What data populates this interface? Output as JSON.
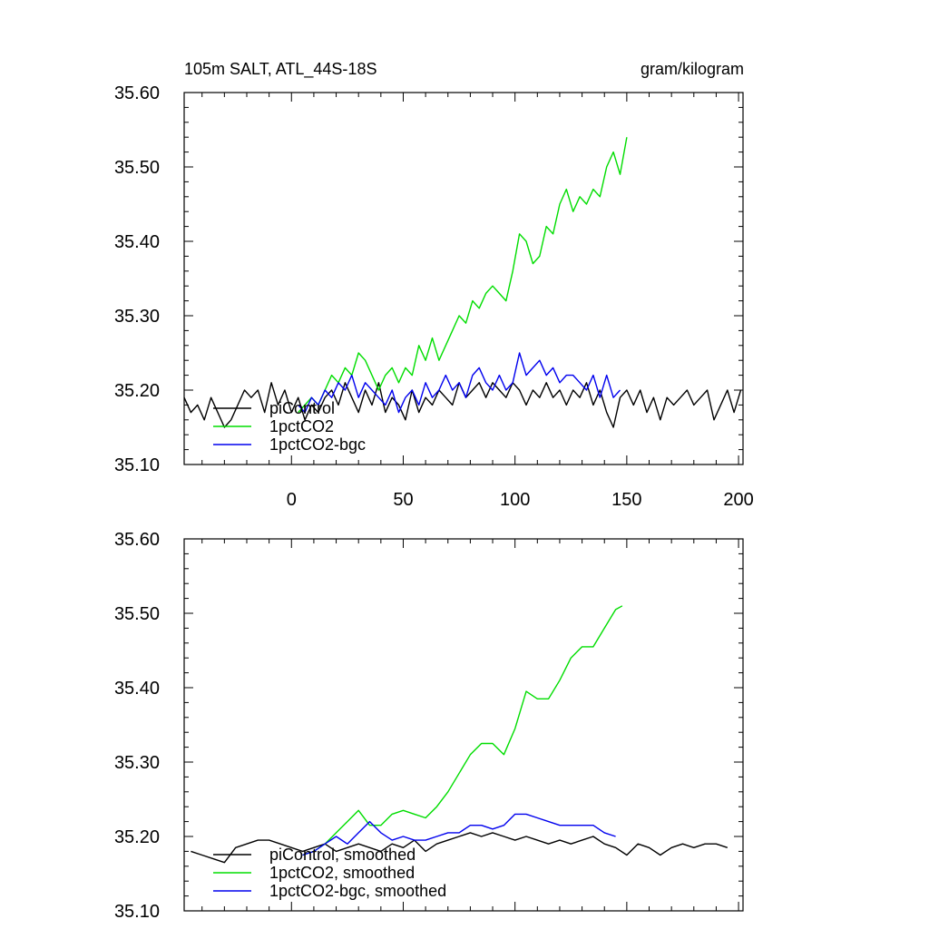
{
  "chart_data": [
    {
      "type": "line",
      "title_left": "105m SALT, ATL_44S-18S",
      "title_right": "gram/kilogram",
      "xlim": [
        -48,
        202
      ],
      "ylim": [
        35.1,
        35.6
      ],
      "x_ticks": [
        "0",
        "50",
        "100",
        "150",
        "200"
      ],
      "y_ticks": [
        "35.10",
        "35.20",
        "35.30",
        "35.40",
        "35.50",
        "35.60"
      ],
      "grid": false,
      "legend_position": "bottom-left",
      "series": [
        {
          "name": "piControl",
          "color": "#000000",
          "x": [
            -48,
            -45,
            -42,
            -39,
            -36,
            -33,
            -30,
            -27,
            -24,
            -21,
            -18,
            -15,
            -12,
            -9,
            -6,
            -3,
            0,
            3,
            6,
            9,
            12,
            15,
            18,
            21,
            24,
            27,
            30,
            33,
            36,
            39,
            42,
            45,
            48,
            51,
            54,
            57,
            60,
            63,
            66,
            69,
            72,
            75,
            78,
            81,
            84,
            87,
            90,
            93,
            96,
            99,
            102,
            105,
            108,
            111,
            114,
            117,
            120,
            123,
            126,
            129,
            132,
            135,
            138,
            141,
            144,
            147,
            150,
            153,
            156,
            159,
            162,
            165,
            168,
            171,
            174,
            177,
            180,
            183,
            186,
            189,
            192,
            195,
            198,
            201
          ],
          "y": [
            35.19,
            35.17,
            35.18,
            35.16,
            35.19,
            35.17,
            35.15,
            35.16,
            35.18,
            35.2,
            35.19,
            35.2,
            35.17,
            35.21,
            35.18,
            35.2,
            35.17,
            35.19,
            35.16,
            35.18,
            35.17,
            35.19,
            35.2,
            35.18,
            35.21,
            35.19,
            35.17,
            35.2,
            35.18,
            35.21,
            35.17,
            35.19,
            35.18,
            35.16,
            35.2,
            35.17,
            35.19,
            35.18,
            35.2,
            35.19,
            35.18,
            35.21,
            35.19,
            35.2,
            35.21,
            35.19,
            35.21,
            35.2,
            35.19,
            35.21,
            35.2,
            35.18,
            35.2,
            35.19,
            35.21,
            35.19,
            35.2,
            35.18,
            35.2,
            35.19,
            35.21,
            35.18,
            35.2,
            35.17,
            35.15,
            35.19,
            35.2,
            35.18,
            35.2,
            35.17,
            35.19,
            35.16,
            35.19,
            35.18,
            35.19,
            35.2,
            35.18,
            35.19,
            35.2,
            35.16,
            35.18,
            35.2,
            35.17,
            35.2
          ]
        },
        {
          "name": "1pctCO2",
          "color": "#00dd00",
          "x": [
            3,
            6,
            9,
            12,
            15,
            18,
            21,
            24,
            27,
            30,
            33,
            36,
            39,
            42,
            45,
            48,
            51,
            54,
            57,
            60,
            63,
            66,
            69,
            72,
            75,
            78,
            81,
            84,
            87,
            90,
            93,
            96,
            99,
            102,
            105,
            108,
            111,
            114,
            117,
            120,
            123,
            126,
            129,
            132,
            135,
            138,
            141,
            144,
            147,
            150
          ],
          "y": [
            35.17,
            35.18,
            35.19,
            35.18,
            35.2,
            35.22,
            35.21,
            35.23,
            35.22,
            35.25,
            35.24,
            35.22,
            35.2,
            35.22,
            35.23,
            35.21,
            35.23,
            35.22,
            35.26,
            35.24,
            35.27,
            35.24,
            35.26,
            35.28,
            35.3,
            35.29,
            35.32,
            35.31,
            35.33,
            35.34,
            35.33,
            35.32,
            35.36,
            35.41,
            35.4,
            35.37,
            35.38,
            35.42,
            35.41,
            35.45,
            35.47,
            35.44,
            35.46,
            35.45,
            35.47,
            35.46,
            35.5,
            35.52,
            35.49,
            35.54
          ]
        },
        {
          "name": "1pctCO2-bgc",
          "color": "#0000ee",
          "x": [
            3,
            6,
            9,
            12,
            15,
            18,
            21,
            24,
            27,
            30,
            33,
            36,
            39,
            42,
            45,
            48,
            51,
            54,
            57,
            60,
            63,
            66,
            69,
            72,
            75,
            78,
            81,
            84,
            87,
            90,
            93,
            96,
            99,
            102,
            105,
            108,
            111,
            114,
            117,
            120,
            123,
            126,
            129,
            132,
            135,
            138,
            141,
            144,
            147
          ],
          "y": [
            35.18,
            35.17,
            35.19,
            35.18,
            35.2,
            35.19,
            35.21,
            35.2,
            35.22,
            35.19,
            35.21,
            35.2,
            35.19,
            35.18,
            35.2,
            35.17,
            35.19,
            35.2,
            35.18,
            35.21,
            35.19,
            35.2,
            35.22,
            35.2,
            35.21,
            35.19,
            35.22,
            35.23,
            35.21,
            35.2,
            35.22,
            35.2,
            35.21,
            35.25,
            35.22,
            35.23,
            35.24,
            35.22,
            35.23,
            35.21,
            35.22,
            35.22,
            35.21,
            35.2,
            35.22,
            35.19,
            35.22,
            35.19,
            35.2
          ]
        }
      ]
    },
    {
      "type": "line",
      "xlim": [
        -48,
        202
      ],
      "ylim": [
        35.1,
        35.6
      ],
      "y_ticks": [
        "35.10",
        "35.20",
        "35.30",
        "35.40",
        "35.50",
        "35.60"
      ],
      "grid": false,
      "legend_position": "bottom-left",
      "series": [
        {
          "name": "piControl, smoothed",
          "color": "#000000",
          "x": [
            -45,
            -40,
            -35,
            -30,
            -25,
            -20,
            -15,
            -10,
            -5,
            0,
            5,
            10,
            15,
            20,
            25,
            30,
            35,
            40,
            45,
            50,
            55,
            60,
            65,
            70,
            75,
            80,
            85,
            90,
            95,
            100,
            105,
            110,
            115,
            120,
            125,
            130,
            135,
            140,
            145,
            150,
            155,
            160,
            165,
            170,
            175,
            180,
            185,
            190,
            195
          ],
          "y": [
            35.18,
            35.175,
            35.17,
            35.165,
            35.185,
            35.19,
            35.195,
            35.195,
            35.19,
            35.185,
            35.18,
            35.185,
            35.19,
            35.18,
            35.185,
            35.19,
            35.185,
            35.18,
            35.19,
            35.185,
            35.195,
            35.18,
            35.19,
            35.195,
            35.2,
            35.205,
            35.2,
            35.205,
            35.2,
            35.195,
            35.2,
            35.195,
            35.19,
            35.195,
            35.19,
            35.195,
            35.2,
            35.19,
            35.185,
            35.175,
            35.19,
            35.185,
            35.175,
            35.185,
            35.19,
            35.185,
            35.19,
            35.19,
            35.185
          ]
        },
        {
          "name": "1pctCO2, smoothed",
          "color": "#00dd00",
          "x": [
            5,
            10,
            15,
            20,
            25,
            30,
            35,
            40,
            45,
            50,
            55,
            60,
            65,
            70,
            75,
            80,
            85,
            90,
            95,
            100,
            105,
            110,
            115,
            120,
            125,
            130,
            135,
            140,
            145,
            148
          ],
          "y": [
            35.175,
            35.18,
            35.19,
            35.205,
            35.22,
            35.235,
            35.215,
            35.215,
            35.23,
            35.235,
            35.23,
            35.225,
            35.24,
            35.26,
            35.285,
            35.31,
            35.325,
            35.325,
            35.31,
            35.345,
            35.395,
            35.385,
            35.385,
            35.41,
            35.44,
            35.455,
            35.455,
            35.48,
            35.505,
            35.51
          ]
        },
        {
          "name": "1pctCO2-bgc, smoothed",
          "color": "#0000ee",
          "x": [
            5,
            10,
            15,
            20,
            25,
            30,
            35,
            40,
            45,
            50,
            55,
            60,
            65,
            70,
            75,
            80,
            85,
            90,
            95,
            100,
            105,
            110,
            115,
            120,
            125,
            130,
            135,
            140,
            145
          ],
          "y": [
            35.175,
            35.18,
            35.19,
            35.2,
            35.19,
            35.205,
            35.22,
            35.205,
            35.195,
            35.2,
            35.195,
            35.195,
            35.2,
            35.205,
            35.205,
            35.215,
            35.215,
            35.21,
            35.215,
            35.23,
            35.23,
            35.225,
            35.22,
            35.215,
            35.215,
            35.215,
            35.215,
            35.205,
            35.2
          ]
        }
      ]
    }
  ]
}
